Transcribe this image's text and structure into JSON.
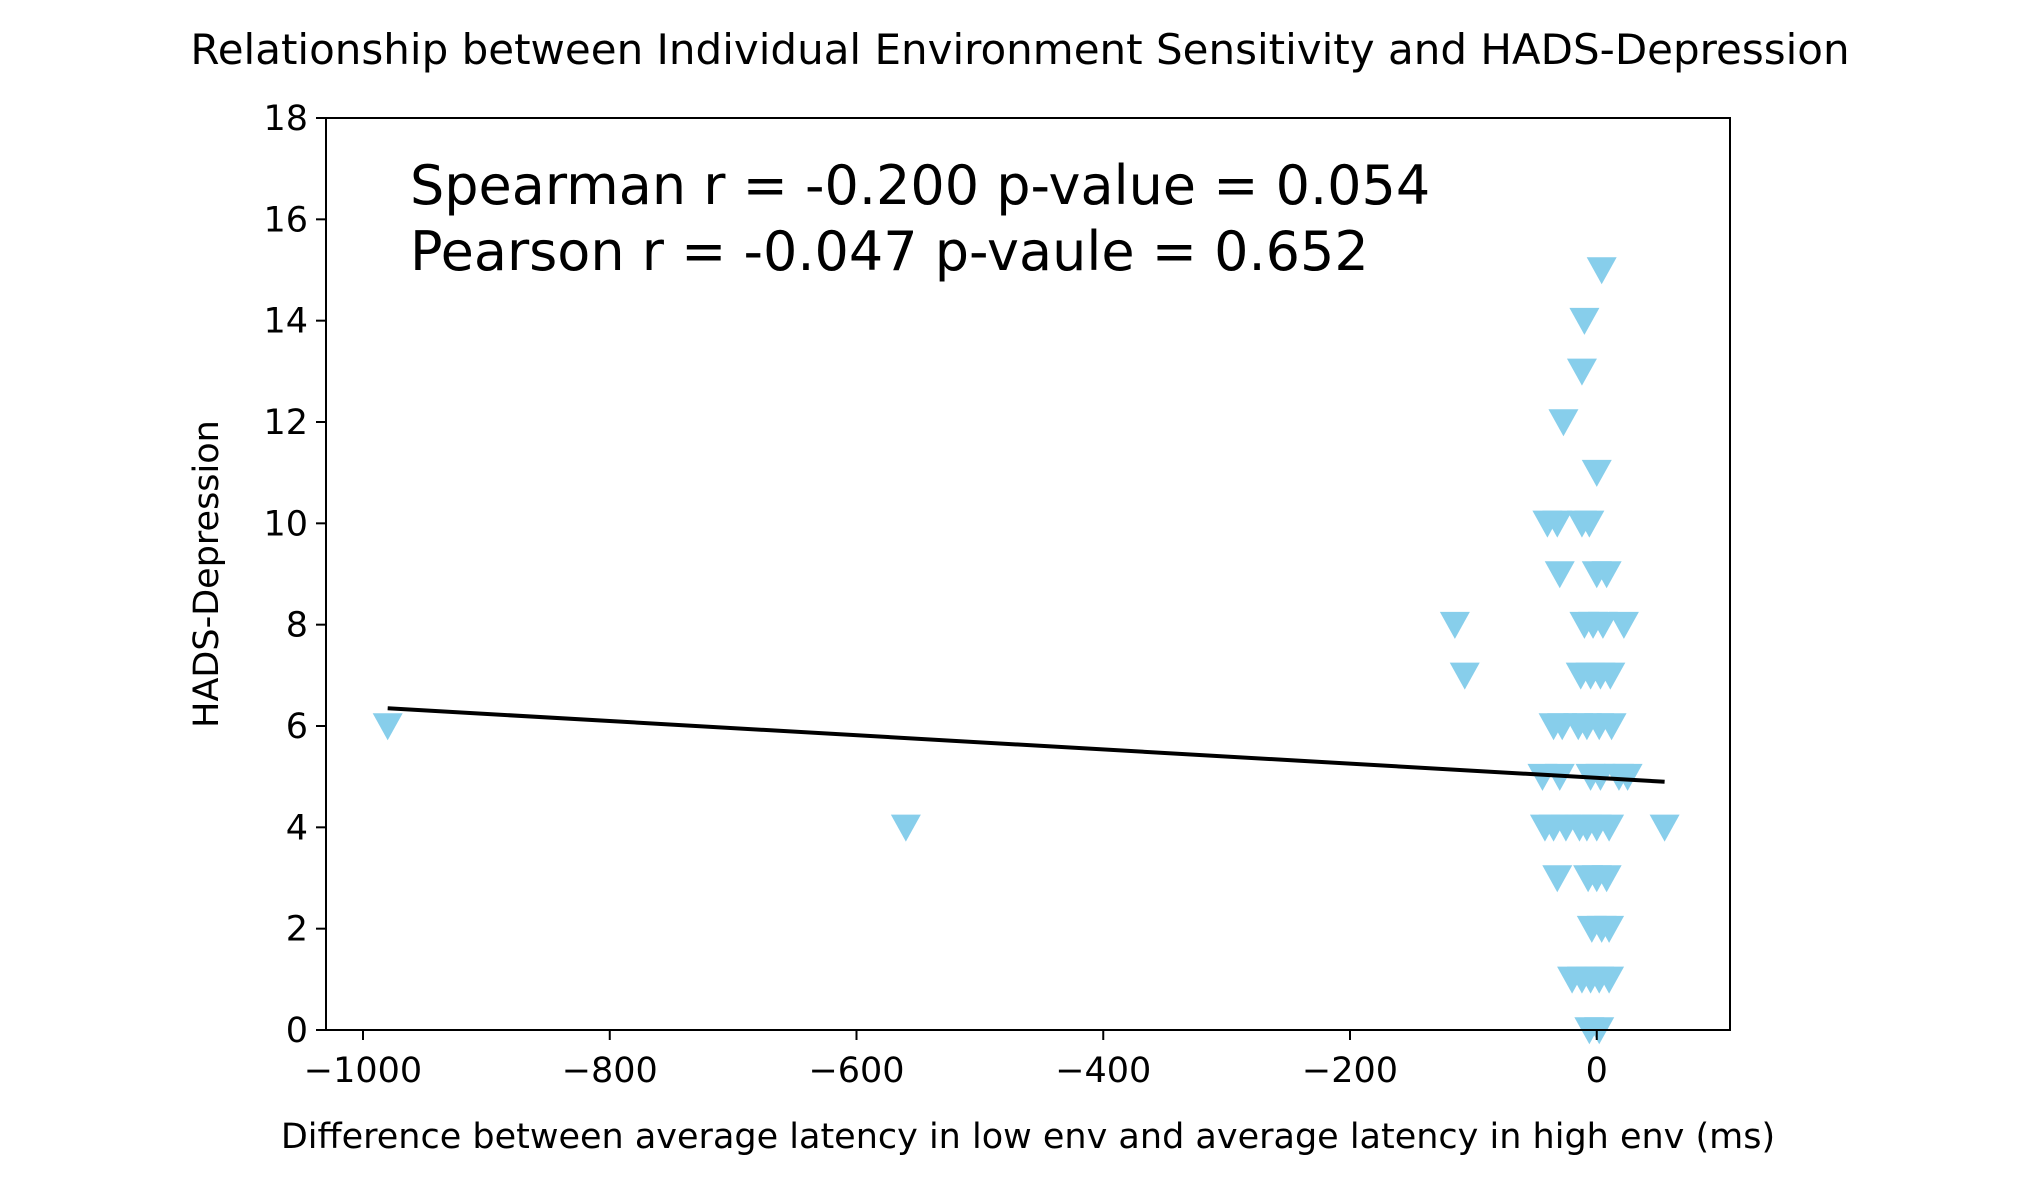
{
  "chart_data": {
    "type": "scatter",
    "title": "Relationship between Individual Environment Sensitivity and HADS-Depression",
    "xlabel": "Difference between average latency in low env and average latency in high env (ms)",
    "ylabel": "HADS-Depression",
    "xlim": [
      -1030,
      108
    ],
    "ylim": [
      0,
      18
    ],
    "xticks": [
      {
        "value": -1000,
        "label": "−1000"
      },
      {
        "value": -800,
        "label": "−800"
      },
      {
        "value": -600,
        "label": "−600"
      },
      {
        "value": -400,
        "label": "−400"
      },
      {
        "value": -200,
        "label": "−200"
      },
      {
        "value": 0,
        "label": "0"
      }
    ],
    "yticks": [
      {
        "value": 0,
        "label": "0"
      },
      {
        "value": 2,
        "label": "2"
      },
      {
        "value": 4,
        "label": "4"
      },
      {
        "value": 6,
        "label": "6"
      },
      {
        "value": 8,
        "label": "8"
      },
      {
        "value": 10,
        "label": "10"
      },
      {
        "value": 12,
        "label": "12"
      },
      {
        "value": 14,
        "label": "14"
      },
      {
        "value": 16,
        "label": "16"
      },
      {
        "value": 18,
        "label": "18"
      }
    ],
    "grid": false,
    "marker": "triangle-down",
    "marker_color": "#87ceeb",
    "line_color": "#000000",
    "points": [
      {
        "x": -980,
        "y": 6
      },
      {
        "x": -560,
        "y": 4
      },
      {
        "x": -115,
        "y": 8
      },
      {
        "x": -107,
        "y": 7
      },
      {
        "x": 55,
        "y": 4
      },
      {
        "x": 4,
        "y": 15
      },
      {
        "x": -10,
        "y": 14
      },
      {
        "x": -12,
        "y": 13
      },
      {
        "x": -27,
        "y": 12
      },
      {
        "x": 0,
        "y": 11
      },
      {
        "x": -40,
        "y": 10
      },
      {
        "x": -32,
        "y": 10
      },
      {
        "x": -12,
        "y": 10
      },
      {
        "x": -6,
        "y": 10
      },
      {
        "x": -30,
        "y": 9
      },
      {
        "x": 0,
        "y": 9
      },
      {
        "x": 8,
        "y": 9
      },
      {
        "x": -10,
        "y": 8
      },
      {
        "x": -3,
        "y": 8
      },
      {
        "x": 5,
        "y": 8
      },
      {
        "x": 22,
        "y": 8
      },
      {
        "x": -13,
        "y": 7
      },
      {
        "x": -5,
        "y": 7
      },
      {
        "x": 3,
        "y": 7
      },
      {
        "x": 11,
        "y": 7
      },
      {
        "x": -35,
        "y": 6
      },
      {
        "x": -28,
        "y": 6
      },
      {
        "x": -15,
        "y": 6
      },
      {
        "x": -8,
        "y": 6
      },
      {
        "x": 2,
        "y": 6
      },
      {
        "x": 12,
        "y": 6
      },
      {
        "x": -44,
        "y": 5
      },
      {
        "x": -30,
        "y": 5
      },
      {
        "x": -5,
        "y": 5
      },
      {
        "x": 3,
        "y": 5
      },
      {
        "x": 18,
        "y": 5
      },
      {
        "x": 25,
        "y": 5
      },
      {
        "x": -42,
        "y": 4
      },
      {
        "x": -35,
        "y": 4
      },
      {
        "x": -25,
        "y": 4
      },
      {
        "x": -14,
        "y": 4
      },
      {
        "x": -8,
        "y": 4
      },
      {
        "x": 0,
        "y": 4
      },
      {
        "x": 10,
        "y": 4
      },
      {
        "x": -32,
        "y": 3
      },
      {
        "x": -7,
        "y": 3
      },
      {
        "x": 0,
        "y": 3
      },
      {
        "x": 8,
        "y": 3
      },
      {
        "x": -4,
        "y": 2
      },
      {
        "x": 4,
        "y": 2
      },
      {
        "x": 10,
        "y": 2
      },
      {
        "x": -20,
        "y": 1
      },
      {
        "x": -12,
        "y": 1
      },
      {
        "x": -5,
        "y": 1
      },
      {
        "x": 2,
        "y": 1
      },
      {
        "x": 10,
        "y": 1
      },
      {
        "x": -6,
        "y": 0
      },
      {
        "x": 2,
        "y": 0
      }
    ],
    "fit_line": {
      "x": [
        -980,
        55
      ],
      "y": [
        6.35,
        4.9
      ]
    },
    "annotations": [
      "Spearman r = -0.200 p-value = 0.054",
      "Pearson r = -0.047 p-vaule = 0.652"
    ]
  }
}
